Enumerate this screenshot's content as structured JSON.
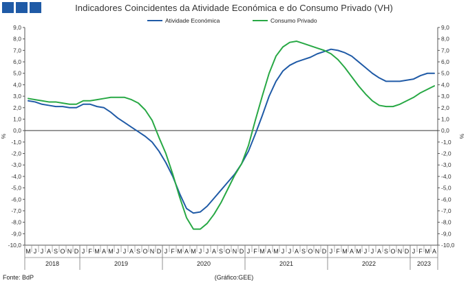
{
  "header": {
    "title": "Indicadores Coincidentes da Atividade Económica e do Consumo Privado (VH)"
  },
  "footer": {
    "source": "Fonte: BdP",
    "credit": "(Gráfico:GEE)"
  },
  "chart_data": {
    "type": "line",
    "title": "Indicadores Coincidentes da Atividade Económica e do Consumo Privado (VH)",
    "ylabel_left": "%",
    "ylabel_right": "%",
    "ylim": [
      -10,
      9
    ],
    "y_ticks": [
      "9,0",
      "8,0",
      "7,0",
      "6,0",
      "5,0",
      "4,0",
      "3,0",
      "2,0",
      "1,0",
      "0,0",
      "-1,0",
      "-2,0",
      "-3,0",
      "-4,0",
      "-5,0",
      "-6,0",
      "-7,0",
      "-8,0",
      "-9,0",
      "-10,0"
    ],
    "legend_position": "top-center",
    "grid": false,
    "months": [
      "M",
      "J",
      "J",
      "A",
      "S",
      "O",
      "N",
      "D",
      "J",
      "F",
      "M",
      "A",
      "M",
      "J",
      "J",
      "A",
      "S",
      "O",
      "N",
      "D",
      "J",
      "F",
      "M",
      "A",
      "M",
      "J",
      "J",
      "A",
      "S",
      "O",
      "N",
      "D",
      "J",
      "F",
      "M",
      "A",
      "M",
      "J",
      "J",
      "A",
      "S",
      "O",
      "N",
      "D",
      "J",
      "F",
      "M",
      "A",
      "M",
      "J",
      "J",
      "A",
      "S",
      "O",
      "N",
      "D",
      "J",
      "F",
      "M",
      "A"
    ],
    "years": [
      {
        "label": "2018",
        "start": 0,
        "end": 7
      },
      {
        "label": "2019",
        "start": 8,
        "end": 19
      },
      {
        "label": "2020",
        "start": 20,
        "end": 31
      },
      {
        "label": "2021",
        "start": 32,
        "end": 43
      },
      {
        "label": "2022",
        "start": 44,
        "end": 55
      },
      {
        "label": "2023",
        "start": 56,
        "end": 59
      }
    ],
    "series": [
      {
        "name": "Atividade Económica",
        "color": "#1f5aa6",
        "values": [
          2.6,
          2.5,
          2.3,
          2.2,
          2.1,
          2.1,
          2.0,
          2.0,
          2.3,
          2.3,
          2.1,
          2.0,
          1.6,
          1.1,
          0.7,
          0.3,
          -0.1,
          -0.5,
          -1.0,
          -1.8,
          -2.8,
          -4.0,
          -5.5,
          -6.8,
          -7.2,
          -7.1,
          -6.6,
          -5.9,
          -5.2,
          -4.5,
          -3.8,
          -2.9,
          -1.8,
          -0.3,
          1.3,
          3.0,
          4.3,
          5.2,
          5.7,
          6.0,
          6.2,
          6.4,
          6.7,
          6.9,
          7.1,
          7.0,
          6.8,
          6.5,
          6.0,
          5.5,
          5.0,
          4.6,
          4.3,
          4.3,
          4.3,
          4.4,
          4.5,
          4.8,
          5.0,
          5.0
        ]
      },
      {
        "name": "Consumo Privado",
        "color": "#27a844",
        "values": [
          2.8,
          2.7,
          2.6,
          2.5,
          2.5,
          2.4,
          2.3,
          2.3,
          2.6,
          2.6,
          2.7,
          2.8,
          2.9,
          2.9,
          2.9,
          2.7,
          2.4,
          1.8,
          0.9,
          -0.6,
          -2.0,
          -3.8,
          -5.8,
          -7.6,
          -8.6,
          -8.6,
          -8.1,
          -7.3,
          -6.3,
          -5.1,
          -3.9,
          -2.9,
          -1.3,
          0.9,
          3.0,
          5.0,
          6.5,
          7.3,
          7.7,
          7.8,
          7.6,
          7.4,
          7.2,
          7.0,
          6.7,
          6.2,
          5.5,
          4.7,
          3.9,
          3.2,
          2.6,
          2.2,
          2.1,
          2.1,
          2.3,
          2.6,
          2.9,
          3.3,
          3.6,
          3.9
        ]
      }
    ]
  }
}
